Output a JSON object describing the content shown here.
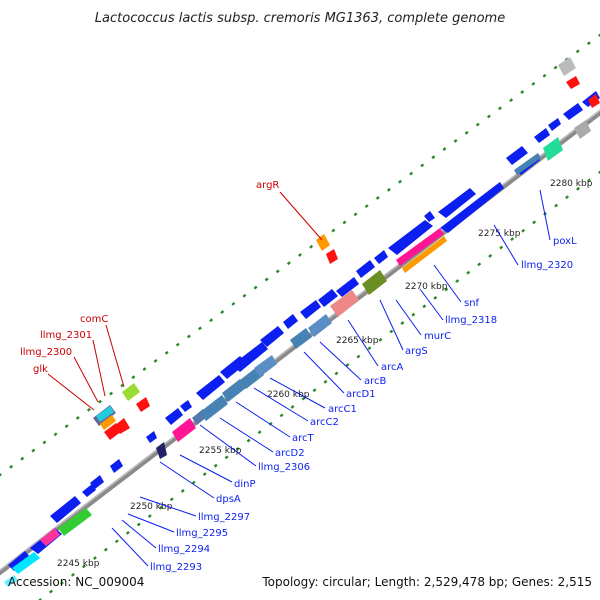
{
  "title": "Lactococcus lactis subsp. cremoris MG1363, complete genome",
  "footer": {
    "accession": "Accession: NC_009004",
    "topology": "Topology: circular; Length: 2,529,478 bp; Genes: 2,515"
  },
  "colors": {
    "cds": "#0b1ff0",
    "highlight_label": "#cc0000",
    "label": "#0b1ff0",
    "backbone": "#8a8a8a",
    "dots": "#2a8a2a"
  },
  "scale_ticks": [
    "2245 kbp",
    "2250 kbp",
    "2255 kbp",
    "2260 kbp",
    "2265 kbp",
    "2270 kbp",
    "2275 kbp",
    "2280 kbp"
  ],
  "labels_red": [
    "argR",
    "comC",
    "llmg_2301",
    "llmg_2300",
    "glk"
  ],
  "labels_blue": [
    "poxL",
    "llmg_2320",
    "snf",
    "llmg_2318",
    "murC",
    "argS",
    "arcA",
    "arcB",
    "arcD1",
    "arcC1",
    "arcC2",
    "arcT",
    "arcD2",
    "llmg_2306",
    "dinP",
    "dpsA",
    "llmg_2297",
    "llmg_2295",
    "llmg_2294",
    "llmg_2293"
  ]
}
